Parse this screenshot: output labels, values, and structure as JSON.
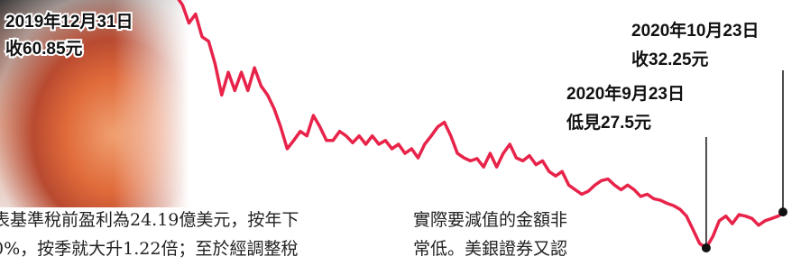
{
  "chart_data": {
    "type": "line",
    "color": "#e8234a",
    "values": [
      60.85,
      59.6,
      57.2,
      58.4,
      55.4,
      54.8,
      51.8,
      47.7,
      50.7,
      48.3,
      50.7,
      48.3,
      51.3,
      48.9,
      47.7,
      45.9,
      43.5,
      40.6,
      41.7,
      42.9,
      42.3,
      45.0,
      43.5,
      41.7,
      41.7,
      42.9,
      42.3,
      41.4,
      42.3,
      41.2,
      42.3,
      41.2,
      41.7,
      40.6,
      41.2,
      40.0,
      40.6,
      39.4,
      41.2,
      42.3,
      43.5,
      44.1,
      42.3,
      40.0,
      39.4,
      39.0,
      39.3,
      38.2,
      40.0,
      38.2,
      40.0,
      41.2,
      39.4,
      39.0,
      39.7,
      38.5,
      39.0,
      37.6,
      37.0,
      37.6,
      35.8,
      35.2,
      34.6,
      35.0,
      35.8,
      36.4,
      36.6,
      35.8,
      35.2,
      35.8,
      35.2,
      34.3,
      34.6,
      34.0,
      33.8,
      33.4,
      33.1,
      32.6,
      31.7,
      29.9,
      28.1,
      27.5,
      29.0,
      31.1,
      31.7,
      30.7,
      31.9,
      31.7,
      31.4,
      30.5,
      31.1,
      31.4,
      31.7,
      32.25
    ],
    "annotations": [
      {
        "date": "2019年12月31日",
        "text": "收60.85元"
      },
      {
        "date": "2020年9月23日",
        "text": "低見27.5元"
      },
      {
        "date": "2020年10月23日",
        "text": "收32.25元"
      }
    ]
  },
  "article": {
    "columns": [
      [
        "表基準稅前盈利為24.19億美元，按年下",
        "0%，按季就大升1.22倍；至於經調整稅"
      ],
      [
        "實際要減值的金額非",
        "常低。美銀證券又認"
      ]
    ]
  }
}
